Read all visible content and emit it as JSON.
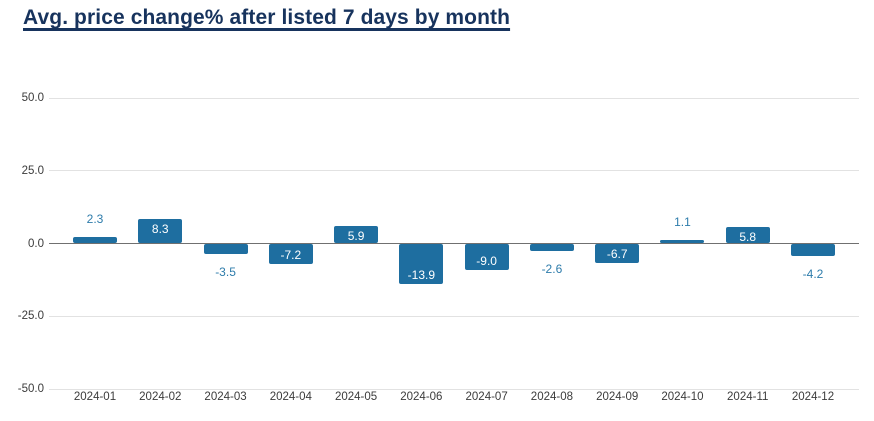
{
  "chart_data": {
    "type": "bar",
    "title": "Avg. price change% after listed 7 days by month",
    "categories": [
      "2024-01",
      "2024-02",
      "2024-03",
      "2024-04",
      "2024-05",
      "2024-06",
      "2024-07",
      "2024-08",
      "2024-09",
      "2024-10",
      "2024-11",
      "2024-12"
    ],
    "values": [
      2.3,
      8.3,
      -3.5,
      -7.2,
      5.9,
      -13.9,
      -9.0,
      -2.6,
      -6.7,
      1.1,
      5.8,
      -4.2
    ],
    "value_labels": [
      "2.3",
      "8.3",
      "-3.5",
      "-7.2",
      "5.9",
      "-13.9",
      "-9.0",
      "-2.6",
      "-6.7",
      "1.1",
      "5.8",
      "-4.2"
    ],
    "xlabel": "",
    "ylabel": "",
    "ylim": [
      -50,
      50
    ],
    "yticks": {
      "values": [
        50,
        25,
        0,
        -25,
        -50
      ],
      "labels": [
        "50.0",
        "25.0",
        "0.0",
        "-25.0",
        "-50.0"
      ]
    },
    "grid": true,
    "legend": "none",
    "label_placement_threshold": 5,
    "colors": {
      "bar": "#1e6ea0",
      "label_inside": "#ffffff",
      "label_outside": "#2e7cab",
      "grid_line": "#e2e2e2",
      "zero_line": "#707070",
      "tick_text": "#3b3b3b",
      "title_text": "#17335d"
    }
  }
}
